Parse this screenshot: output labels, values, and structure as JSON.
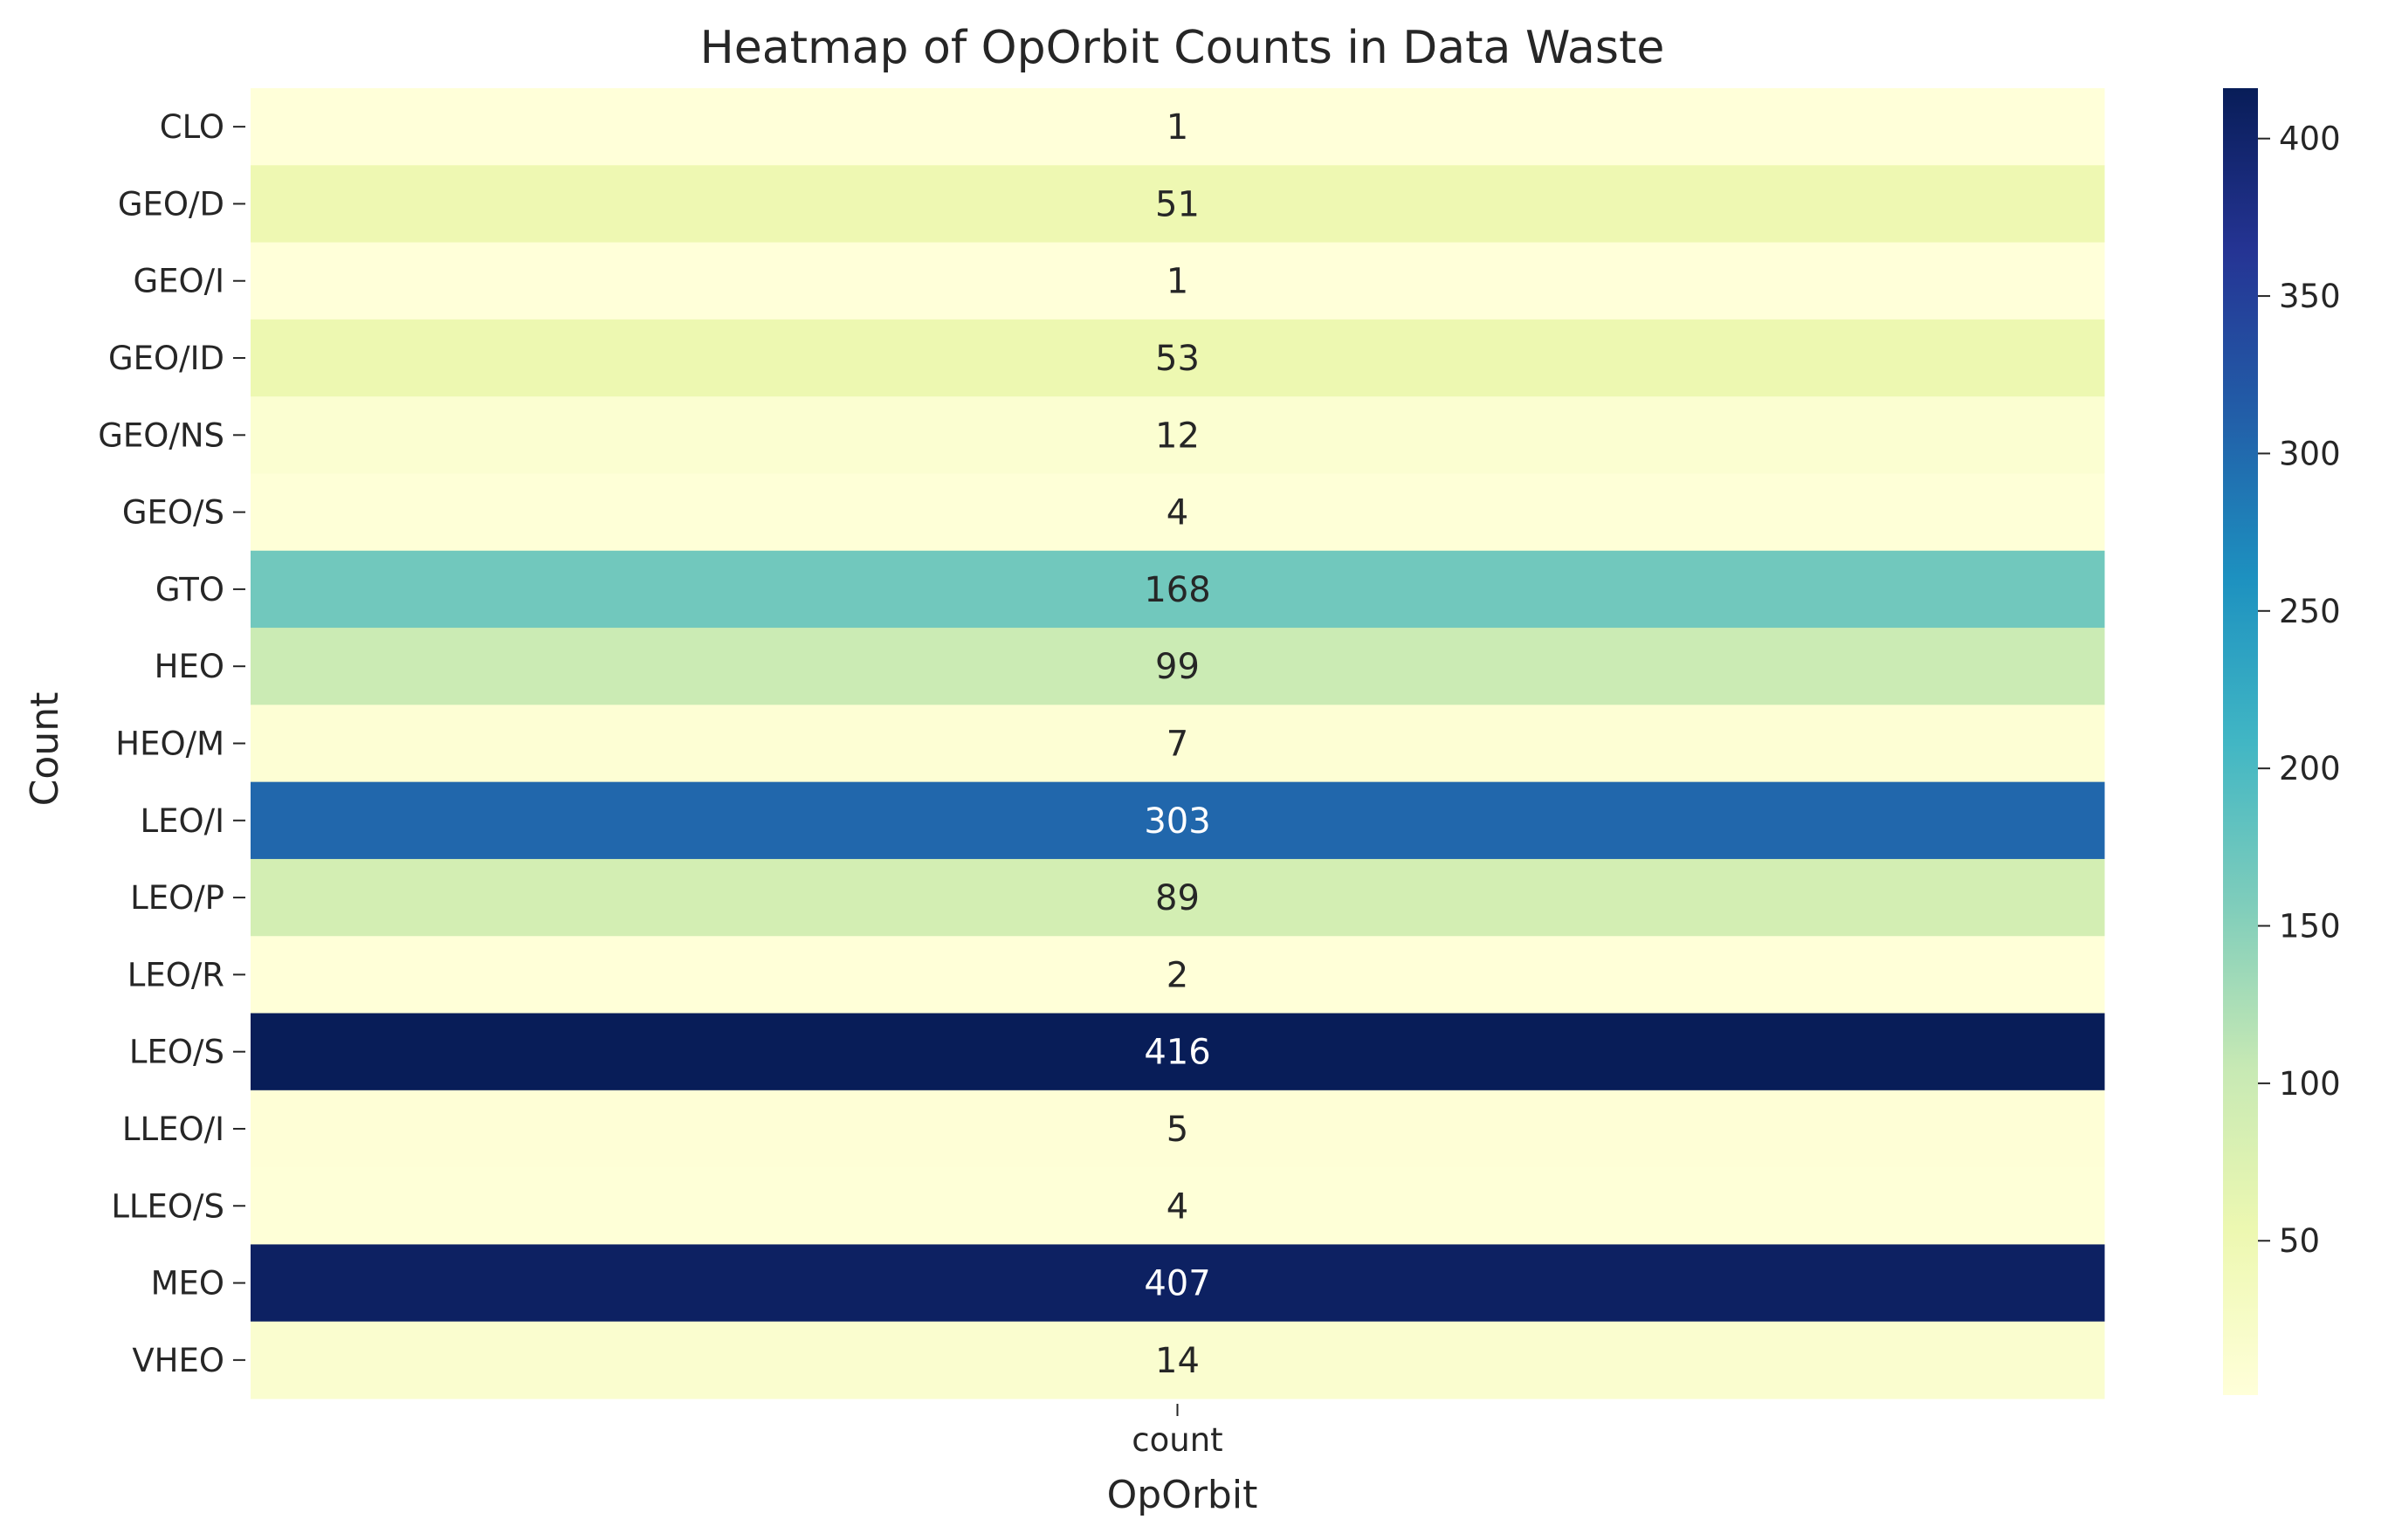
{
  "chart_data": {
    "type": "heatmap",
    "title": "Heatmap of OpOrbit Counts in Data Waste",
    "xlabel": "OpOrbit",
    "ylabel": "Count",
    "columns": [
      "count"
    ],
    "rows": [
      "CLO",
      "GEO/D",
      "GEO/I",
      "GEO/ID",
      "GEO/NS",
      "GEO/S",
      "GTO",
      "HEO",
      "HEO/M",
      "LEO/I",
      "LEO/P",
      "LEO/R",
      "LEO/S",
      "LLEO/I",
      "LLEO/S",
      "MEO",
      "VHEO"
    ],
    "values": [
      [
        1
      ],
      [
        51
      ],
      [
        1
      ],
      [
        53
      ],
      [
        12
      ],
      [
        4
      ],
      [
        168
      ],
      [
        99
      ],
      [
        7
      ],
      [
        303
      ],
      [
        89
      ],
      [
        2
      ],
      [
        416
      ],
      [
        5
      ],
      [
        4
      ],
      [
        407
      ],
      [
        14
      ]
    ],
    "value_range": [
      1,
      416
    ],
    "colormap": "YlGnBu",
    "colorbar": {
      "ticks": [
        50,
        100,
        150,
        200,
        250,
        300,
        350,
        400
      ]
    },
    "annotations": true,
    "grid": false
  }
}
